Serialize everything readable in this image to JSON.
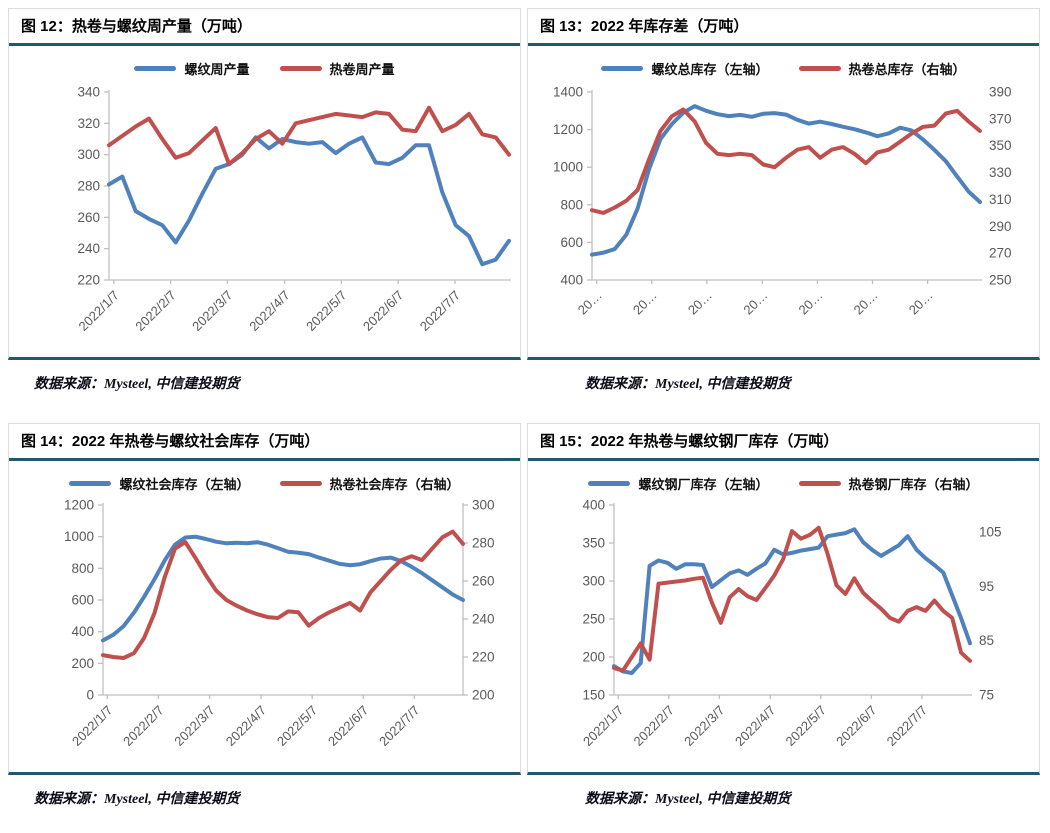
{
  "palette": {
    "series_blue": "#4F81BD",
    "series_red": "#C0504D",
    "teal_rule": "#215968",
    "axis_line": "#BFBFBF",
    "tick_text": "#595959",
    "panel_border": "#DCDCDC"
  },
  "chart_data": [
    {
      "type": "line",
      "title": "图 12：热卷与螺纹周产量（万吨）",
      "legend_position": "top",
      "grid": false,
      "source": "数据来源：Mysteel, 中信建投期货",
      "x_tick_labels": [
        "2022/1/7",
        "2022/2/7",
        "2022/3/7",
        "2022/4/7",
        "2022/5/7",
        "2022/6/7",
        "2022/7/7"
      ],
      "left_axis": {
        "min": 220,
        "max": 340,
        "ticks": [
          340,
          320,
          300,
          280,
          260,
          240,
          220
        ]
      },
      "right_axis": null,
      "series": [
        {
          "name": "螺纹周产量",
          "axis": "left",
          "color": "#4F81BD",
          "values": [
            281,
            286,
            264,
            259,
            255,
            244,
            258,
            275,
            291,
            294,
            300,
            311,
            304,
            310,
            308,
            307,
            308,
            301,
            307,
            311,
            295,
            294,
            298,
            306,
            306,
            276,
            255,
            248,
            230,
            233,
            245
          ]
        },
        {
          "name": "热卷周产量",
          "axis": "left",
          "color": "#C0504D",
          "values": [
            306,
            312,
            318,
            323,
            310,
            298,
            301,
            309,
            317,
            294,
            301,
            310,
            315,
            307,
            320,
            322,
            324,
            326,
            325,
            324,
            327,
            326,
            316,
            315,
            330,
            315,
            319,
            326,
            313,
            311,
            300
          ]
        }
      ]
    },
    {
      "type": "line",
      "title": "图 13：2022 年库存差（万吨）",
      "legend_position": "top",
      "grid": false,
      "source": "数据来源：Mysteel, 中信建投期货",
      "x_tick_labels": [
        "20…",
        "20…",
        "20…",
        "20…",
        "20…",
        "20…",
        "20…"
      ],
      "left_axis": {
        "min": 400,
        "max": 1400,
        "ticks": [
          1400,
          1200,
          1000,
          800,
          600,
          400
        ]
      },
      "right_axis": {
        "min": 250,
        "max": 390,
        "ticks": [
          390,
          370,
          350,
          330,
          310,
          290,
          270,
          250
        ],
        "axis_line": false
      },
      "series": [
        {
          "name": "螺纹总库存（左轴）",
          "axis": "left",
          "color": "#4F81BD",
          "values": [
            535,
            545,
            565,
            640,
            780,
            990,
            1150,
            1230,
            1290,
            1325,
            1300,
            1282,
            1272,
            1278,
            1268,
            1284,
            1288,
            1280,
            1252,
            1232,
            1242,
            1230,
            1215,
            1202,
            1185,
            1165,
            1180,
            1210,
            1196,
            1148,
            1092,
            1032,
            950,
            870,
            815
          ]
        },
        {
          "name": "热卷总库存（右轴）",
          "axis": "right",
          "color": "#C0504D",
          "values": [
            302,
            300,
            304,
            309,
            317,
            340,
            361,
            372,
            377,
            368,
            352,
            344,
            343,
            344,
            343,
            336,
            334,
            341,
            347,
            349,
            341,
            347,
            349,
            344,
            337,
            345,
            347,
            353,
            359,
            364,
            365,
            374,
            376,
            368,
            361
          ]
        }
      ]
    },
    {
      "type": "line",
      "title": "图 14：2022 年热卷与螺纹社会库存（万吨）",
      "legend_position": "top",
      "grid": false,
      "source": "数据来源：Mysteel, 中信建投期货",
      "x_tick_labels": [
        "2022/1/7",
        "2022/2/7",
        "2022/3/7",
        "2022/4/7",
        "2022/5/7",
        "2022/6/7",
        "2022/7/7"
      ],
      "left_axis": {
        "min": 0,
        "max": 1200,
        "ticks": [
          1200,
          1000,
          800,
          600,
          400,
          200,
          0
        ]
      },
      "right_axis": {
        "min": 200,
        "max": 300,
        "ticks": [
          300,
          280,
          260,
          240,
          220,
          200
        ],
        "axis_line": true
      },
      "series": [
        {
          "name": "螺纹社会库存（左轴）",
          "axis": "left",
          "color": "#4F81BD",
          "values": [
            345,
            380,
            435,
            520,
            620,
            730,
            850,
            950,
            995,
            1000,
            985,
            968,
            958,
            962,
            958,
            965,
            950,
            928,
            905,
            898,
            890,
            868,
            848,
            828,
            820,
            826,
            845,
            862,
            868,
            845,
            810,
            770,
            725,
            680,
            635,
            600
          ]
        },
        {
          "name": "热卷社会库存（右轴）",
          "axis": "right",
          "color": "#C0504D",
          "values": [
            221,
            220,
            219.5,
            222,
            230,
            243,
            262,
            277,
            280.5,
            272,
            263,
            255,
            250,
            247,
            244.5,
            242.5,
            241,
            240.5,
            244,
            243.5,
            236.5,
            240.5,
            243.5,
            246,
            248.5,
            244.5,
            254,
            260,
            266,
            271,
            273,
            271,
            277,
            283,
            286,
            279.5
          ]
        }
      ]
    },
    {
      "type": "line",
      "title": "图 15：2022 年热卷与螺纹钢厂库存（万吨）",
      "legend_position": "top",
      "grid": false,
      "source": "数据来源：Mysteel, 中信建投期货",
      "x_tick_labels": [
        "2022/1/7",
        "2022/2/7",
        "2022/3/7",
        "2022/4/7",
        "2022/5/7",
        "2022/6/7",
        "2022/7/7"
      ],
      "left_axis": {
        "min": 150,
        "max": 400,
        "ticks": [
          400,
          350,
          300,
          250,
          200,
          150
        ]
      },
      "right_axis": {
        "min": 75,
        "max": 110,
        "ticks": [
          105,
          95,
          85,
          75
        ],
        "axis_line": false
      },
      "series": [
        {
          "name": "螺纹钢厂库存（左轴）",
          "axis": "left",
          "color": "#4F81BD",
          "values": [
            188,
            181,
            179,
            192,
            320,
            327,
            324,
            316,
            322,
            322,
            321,
            292,
            301,
            310,
            314,
            308,
            316,
            323,
            341,
            335,
            337,
            340,
            342,
            344,
            359,
            361,
            363,
            368,
            351,
            341,
            333,
            340,
            347,
            359,
            341,
            330,
            321,
            311,
            281,
            251,
            218
          ]
        },
        {
          "name": "热卷钢厂库存（右轴）",
          "axis": "right",
          "color": "#C0504D",
          "values": [
            80,
            79.5,
            82,
            84.5,
            81.5,
            95.5,
            95.7,
            95.9,
            96.1,
            96.4,
            96.6,
            92,
            88.3,
            93,
            94.5,
            93.2,
            92.5,
            94.7,
            97,
            100,
            105.2,
            103.8,
            104.5,
            105.8,
            101,
            95.2,
            93.6,
            96.5,
            93.8,
            92.3,
            90.9,
            89.2,
            88.5,
            90.5,
            91.2,
            90.5,
            92.4,
            90.5,
            89.2,
            82.8,
            81.3
          ]
        }
      ]
    }
  ]
}
